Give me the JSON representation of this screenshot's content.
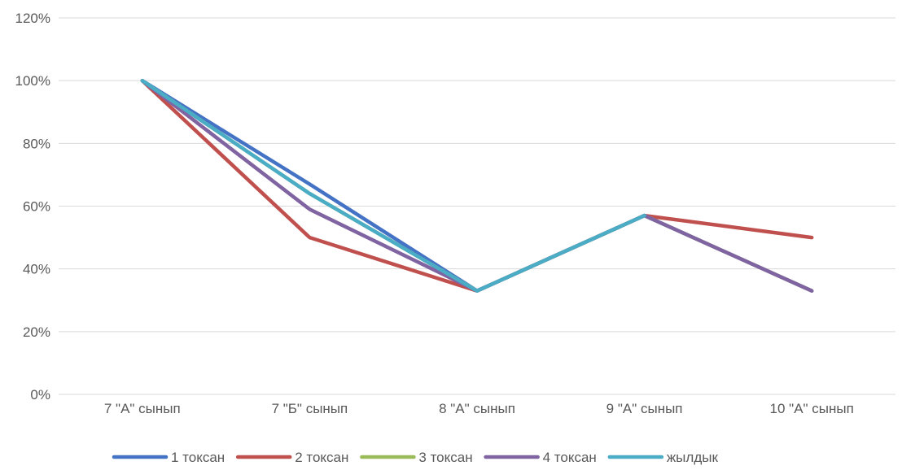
{
  "chart_data": {
    "type": "line",
    "categories": [
      "7 \"А\" сынып",
      "7 \"Б\" сынып",
      "8 \"А\" сынып",
      "9 \"А\" сынып",
      "10 \"А\" сынып"
    ],
    "ylim": [
      0,
      1.2
    ],
    "yticks": [
      0,
      0.2,
      0.4,
      0.6,
      0.8,
      1.0,
      1.2
    ],
    "ytick_labels": [
      "0%",
      "20%",
      "40%",
      "60%",
      "80%",
      "100%",
      "120%"
    ],
    "grid": true,
    "legend_position": "bottom",
    "series": [
      {
        "name": "1 токсан",
        "color": "#4472C4",
        "values": [
          1.0,
          0.67,
          0.33,
          0.57,
          0.33
        ]
      },
      {
        "name": "2 токсан",
        "color": "#C0504D",
        "values": [
          1.0,
          0.5,
          0.33,
          0.57,
          0.5
        ]
      },
      {
        "name": "3 токсан",
        "color": "#9BBB59",
        "values": [
          1.0,
          0.64,
          0.33,
          0.57,
          0.33
        ]
      },
      {
        "name": "4 токсан",
        "color": "#8064A2",
        "values": [
          1.0,
          0.59,
          0.33,
          0.57,
          0.33
        ]
      },
      {
        "name": "жылдык",
        "color": "#4BACC6",
        "values": [
          1.0,
          0.64,
          0.33,
          0.57,
          null
        ]
      }
    ]
  }
}
